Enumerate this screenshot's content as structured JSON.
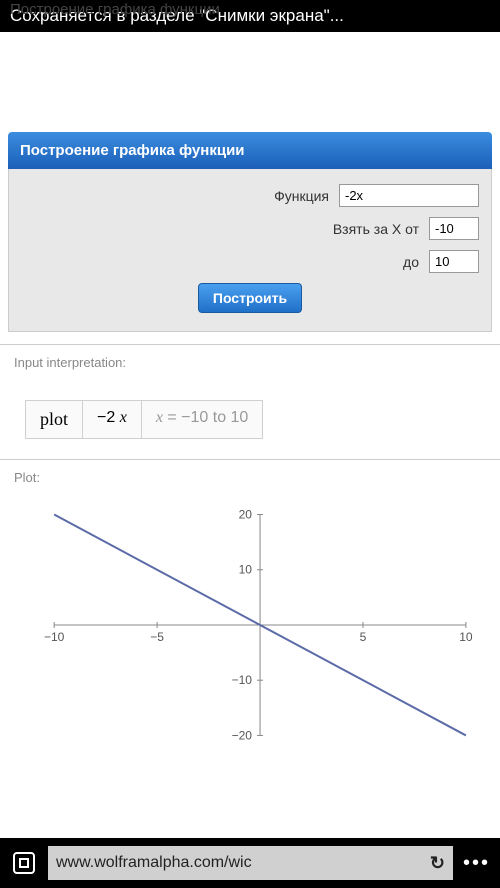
{
  "status_bar": {
    "faded_text": "Построение графика функции",
    "text": "Сохраняется в разделе \"Снимки экрана\"..."
  },
  "panel": {
    "title": "Построение графика функции",
    "labels": {
      "function": "Функция",
      "x_from": "Взять за X от",
      "x_to": "до"
    },
    "values": {
      "function": "-2x",
      "x_from": "-10",
      "x_to": "10"
    },
    "build_button": "Построить"
  },
  "interpretation": {
    "label": "Input interpretation:",
    "cells": {
      "plot": "plot",
      "expr_prefix": "−2 ",
      "expr_var": "x",
      "range_prefix_var": "x",
      "range_text": " = −10 to 10"
    }
  },
  "plot": {
    "label": "Plot:",
    "type": "line",
    "xlim": [
      -10,
      10
    ],
    "ylim": [
      -20,
      20
    ],
    "xticks": [
      -10,
      -5,
      5,
      10
    ],
    "yticks": [
      -20,
      -10,
      10,
      20
    ],
    "line_color": "#5b6ba8",
    "axis_color": "#888888",
    "tick_font_size": 12,
    "points": [
      [
        -10,
        20
      ],
      [
        10,
        -20
      ]
    ]
  },
  "bottom_bar": {
    "url": "www.wolframalpha.com/wic"
  }
}
